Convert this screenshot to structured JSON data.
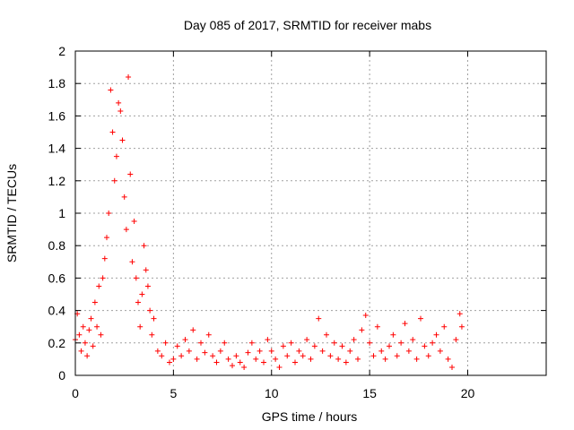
{
  "chart_data": {
    "type": "scatter",
    "title": "Day 085 of 2017, SRMTID for receiver mabs",
    "xlabel": "GPS time / hours",
    "ylabel": "SRMTID / TECUs",
    "xlim": [
      0,
      24
    ],
    "ylim": [
      0,
      2
    ],
    "xticks": [
      0,
      5,
      10,
      15,
      20
    ],
    "yticks": [
      0,
      0.2,
      0.4,
      0.6,
      0.8,
      1,
      1.2,
      1.4,
      1.6,
      1.8,
      2
    ],
    "xtick_labels": [
      "0",
      "5",
      "10",
      "15",
      "20"
    ],
    "ytick_labels": [
      "0",
      "0.2",
      "0.4",
      "0.6",
      "0.8",
      "1",
      "1.2",
      "1.4",
      "1.6",
      "1.8",
      "2"
    ],
    "grid": true,
    "marker": "+",
    "color": "#ff0000",
    "series": [
      {
        "name": "SRMTID",
        "points": [
          [
            0.0,
            0.22
          ],
          [
            0.1,
            0.38
          ],
          [
            0.2,
            0.25
          ],
          [
            0.3,
            0.15
          ],
          [
            0.4,
            0.3
          ],
          [
            0.5,
            0.2
          ],
          [
            0.6,
            0.12
          ],
          [
            0.7,
            0.28
          ],
          [
            0.8,
            0.35
          ],
          [
            0.9,
            0.18
          ],
          [
            1.0,
            0.45
          ],
          [
            1.1,
            0.3
          ],
          [
            1.2,
            0.55
          ],
          [
            1.3,
            0.25
          ],
          [
            1.4,
            0.6
          ],
          [
            1.5,
            0.72
          ],
          [
            1.6,
            0.85
          ],
          [
            1.7,
            1.0
          ],
          [
            1.8,
            1.76
          ],
          [
            1.9,
            1.5
          ],
          [
            2.0,
            1.2
          ],
          [
            2.1,
            1.35
          ],
          [
            2.2,
            1.68
          ],
          [
            2.3,
            1.63
          ],
          [
            2.4,
            1.45
          ],
          [
            2.5,
            1.1
          ],
          [
            2.6,
            0.9
          ],
          [
            2.7,
            1.84
          ],
          [
            2.8,
            1.24
          ],
          [
            2.9,
            0.7
          ],
          [
            3.0,
            0.95
          ],
          [
            3.1,
            0.6
          ],
          [
            3.2,
            0.45
          ],
          [
            3.3,
            0.3
          ],
          [
            3.4,
            0.5
          ],
          [
            3.5,
            0.8
          ],
          [
            3.6,
            0.65
          ],
          [
            3.7,
            0.55
          ],
          [
            3.8,
            0.4
          ],
          [
            3.9,
            0.25
          ],
          [
            4.0,
            0.35
          ],
          [
            4.2,
            0.15
          ],
          [
            4.4,
            0.12
          ],
          [
            4.6,
            0.2
          ],
          [
            4.8,
            0.08
          ],
          [
            5.0,
            0.1
          ],
          [
            5.2,
            0.18
          ],
          [
            5.4,
            0.12
          ],
          [
            5.6,
            0.22
          ],
          [
            5.8,
            0.15
          ],
          [
            6.0,
            0.28
          ],
          [
            6.2,
            0.1
          ],
          [
            6.4,
            0.2
          ],
          [
            6.6,
            0.14
          ],
          [
            6.8,
            0.25
          ],
          [
            7.0,
            0.12
          ],
          [
            7.2,
            0.08
          ],
          [
            7.4,
            0.15
          ],
          [
            7.6,
            0.2
          ],
          [
            7.8,
            0.1
          ],
          [
            8.0,
            0.06
          ],
          [
            8.2,
            0.12
          ],
          [
            8.4,
            0.08
          ],
          [
            8.6,
            0.05
          ],
          [
            8.8,
            0.14
          ],
          [
            9.0,
            0.2
          ],
          [
            9.2,
            0.1
          ],
          [
            9.4,
            0.15
          ],
          [
            9.6,
            0.08
          ],
          [
            9.8,
            0.22
          ],
          [
            10.0,
            0.15
          ],
          [
            10.2,
            0.1
          ],
          [
            10.4,
            0.05
          ],
          [
            10.6,
            0.18
          ],
          [
            10.8,
            0.12
          ],
          [
            11.0,
            0.2
          ],
          [
            11.2,
            0.08
          ],
          [
            11.4,
            0.15
          ],
          [
            11.6,
            0.12
          ],
          [
            11.8,
            0.22
          ],
          [
            12.0,
            0.1
          ],
          [
            12.2,
            0.18
          ],
          [
            12.4,
            0.35
          ],
          [
            12.6,
            0.15
          ],
          [
            12.8,
            0.25
          ],
          [
            13.0,
            0.12
          ],
          [
            13.2,
            0.2
          ],
          [
            13.4,
            0.1
          ],
          [
            13.6,
            0.18
          ],
          [
            13.8,
            0.08
          ],
          [
            14.0,
            0.15
          ],
          [
            14.2,
            0.22
          ],
          [
            14.4,
            0.1
          ],
          [
            14.6,
            0.28
          ],
          [
            14.8,
            0.37
          ],
          [
            15.0,
            0.2
          ],
          [
            15.2,
            0.12
          ],
          [
            15.4,
            0.3
          ],
          [
            15.6,
            0.15
          ],
          [
            15.8,
            0.1
          ],
          [
            16.0,
            0.18
          ],
          [
            16.2,
            0.25
          ],
          [
            16.4,
            0.12
          ],
          [
            16.6,
            0.2
          ],
          [
            16.8,
            0.32
          ],
          [
            17.0,
            0.15
          ],
          [
            17.2,
            0.22
          ],
          [
            17.4,
            0.1
          ],
          [
            17.6,
            0.35
          ],
          [
            17.8,
            0.18
          ],
          [
            18.0,
            0.12
          ],
          [
            18.2,
            0.2
          ],
          [
            18.4,
            0.25
          ],
          [
            18.6,
            0.15
          ],
          [
            18.8,
            0.3
          ],
          [
            19.0,
            0.1
          ],
          [
            19.2,
            0.05
          ],
          [
            19.4,
            0.22
          ],
          [
            19.6,
            0.38
          ],
          [
            19.7,
            0.3
          ]
        ]
      }
    ]
  }
}
